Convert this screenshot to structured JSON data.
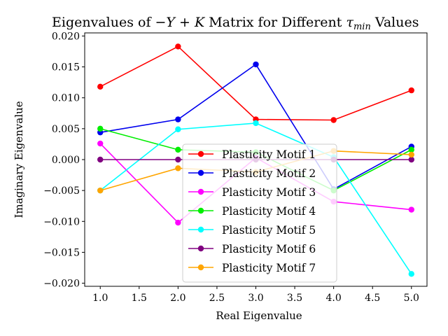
{
  "chart_data": {
    "type": "line",
    "title_parts": {
      "prefix": "Eigenvalues of ",
      "math1": "−Y + K",
      "middle": " Matrix for Different ",
      "tau": "τ",
      "tau_sub": "min",
      "suffix": " Values"
    },
    "xlabel": "Real Eigenvalue",
    "ylabel": "Imaginary Eigenvalue",
    "xlim": [
      0.8,
      5.2
    ],
    "ylim": [
      -0.0205,
      0.0205
    ],
    "x_ticks": [
      1.0,
      1.5,
      2.0,
      2.5,
      3.0,
      3.5,
      4.0,
      4.5,
      5.0
    ],
    "x_tick_labels": [
      "1.0",
      "1.5",
      "2.0",
      "2.5",
      "3.0",
      "3.5",
      "4.0",
      "4.5",
      "5.0"
    ],
    "y_ticks": [
      0.02,
      0.015,
      0.01,
      0.005,
      0.0,
      -0.005,
      -0.01,
      -0.015,
      -0.02
    ],
    "y_tick_labels": [
      "0.020",
      "0.015",
      "0.010",
      "0.005",
      "0.000",
      "−0.005",
      "−0.010",
      "−0.015",
      "−0.020"
    ],
    "grid": false,
    "legend_position": "lower center",
    "x": [
      1,
      2,
      3,
      4,
      5
    ],
    "series": [
      {
        "name": "Plasticity Motif 1",
        "color": "#ff0000",
        "values": [
          0.0118,
          0.0183,
          0.0065,
          0.0064,
          0.0112
        ]
      },
      {
        "name": "Plasticity Motif 2",
        "color": "#0000ee",
        "values": [
          0.0044,
          0.0065,
          0.0154,
          -0.0048,
          0.0021
        ]
      },
      {
        "name": "Plasticity Motif 3",
        "color": "#ff00ff",
        "values": [
          0.0026,
          -0.0102,
          0.0003,
          -0.0068,
          -0.0081
        ]
      },
      {
        "name": "Plasticity Motif 4",
        "color": "#00ee00",
        "values": [
          0.005,
          0.0016,
          0.0012,
          -0.005,
          0.0016
        ]
      },
      {
        "name": "Plasticity Motif 5",
        "color": "#00ffff",
        "values": [
          -0.005,
          0.0049,
          0.0059,
          0.0004,
          -0.0185
        ]
      },
      {
        "name": "Plasticity Motif 6",
        "color": "#800080",
        "values": [
          0.0,
          0.0,
          0.0,
          0.0,
          0.0
        ]
      },
      {
        "name": "Plasticity Motif 7",
        "color": "#ffa500",
        "values": [
          -0.005,
          -0.0014,
          -0.002,
          0.0014,
          0.0008
        ]
      }
    ]
  }
}
